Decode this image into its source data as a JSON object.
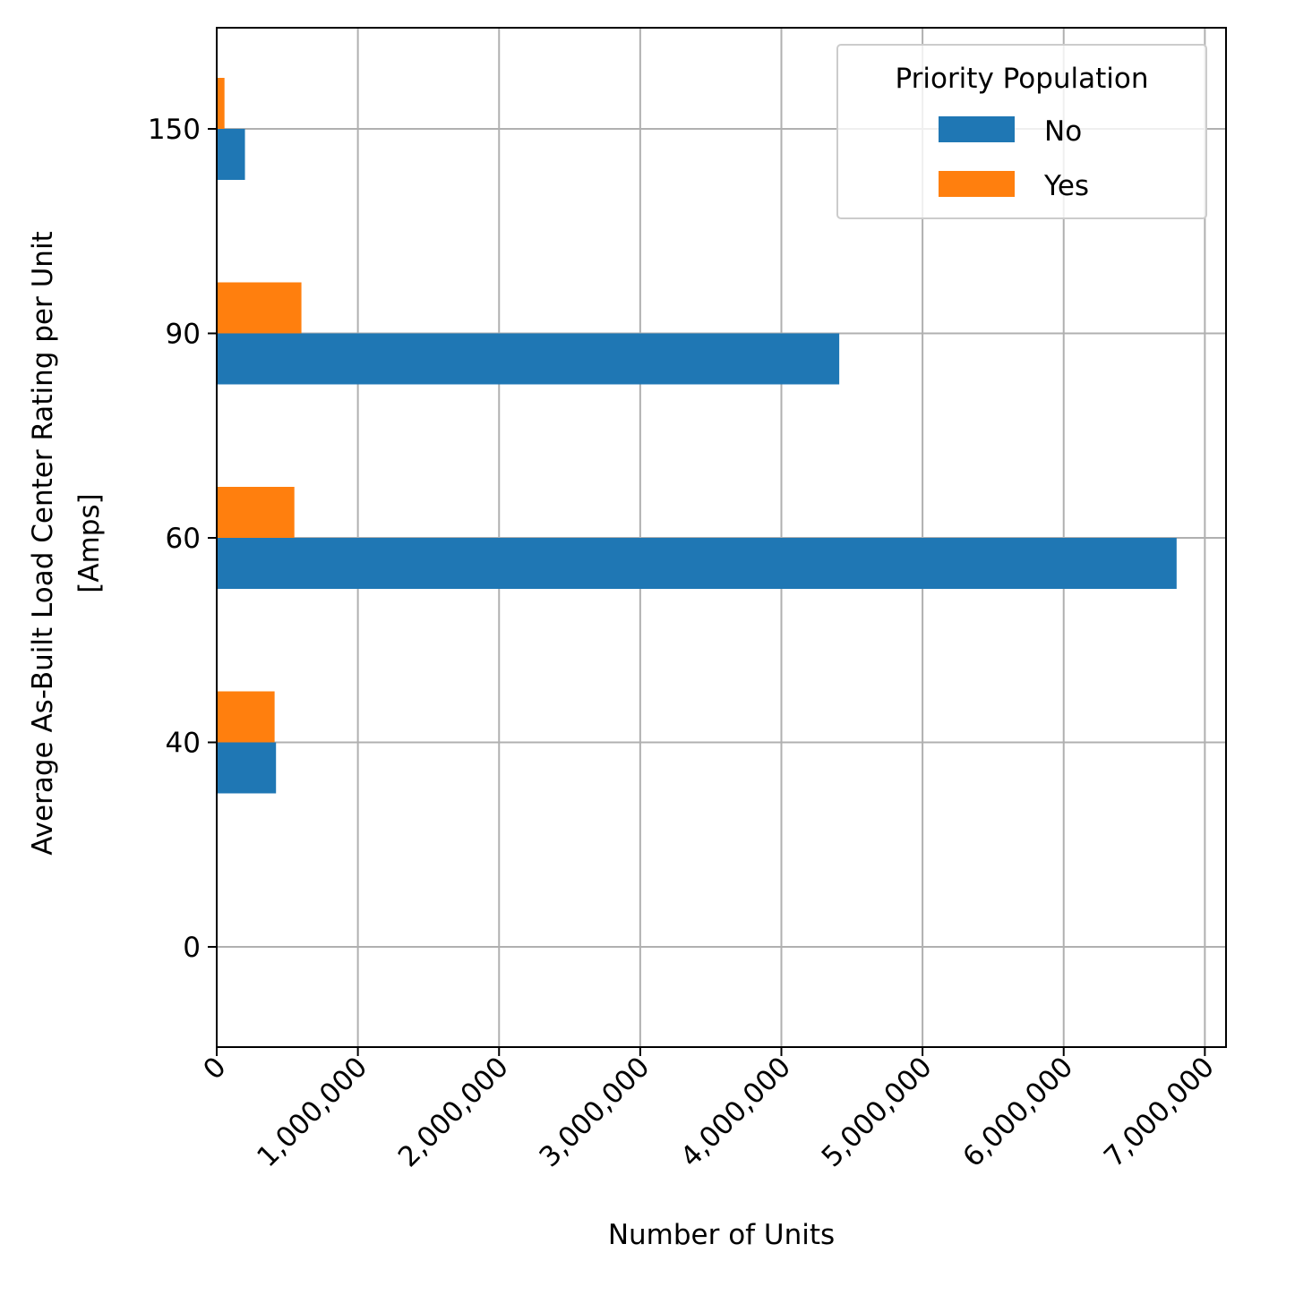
{
  "chart_data": {
    "type": "bar",
    "orientation": "horizontal",
    "xlabel": "Number of Units",
    "ylabel_lines": [
      "Average As-Built Load Center Rating per Unit",
      "[Amps]"
    ],
    "categories": [
      "0",
      "40",
      "60",
      "90",
      "150"
    ],
    "series": [
      {
        "name": "No",
        "color": "#1f77b4",
        "values": [
          0,
          420000,
          6800000,
          4410000,
          200000
        ]
      },
      {
        "name": "Yes",
        "color": "#ff7f0e",
        "values": [
          0,
          410000,
          550000,
          600000,
          55000
        ]
      }
    ],
    "xlim": [
      0,
      7150000
    ],
    "xticks": [
      0,
      1000000,
      2000000,
      3000000,
      4000000,
      5000000,
      6000000,
      7000000
    ],
    "xtick_labels": [
      "0",
      "1,000,000",
      "2,000,000",
      "3,000,000",
      "4,000,000",
      "5,000,000",
      "6,000,000",
      "7,000,000"
    ],
    "grid": true,
    "legend": {
      "title": "Priority Population",
      "placement": "top-right",
      "entries": [
        "No",
        "Yes"
      ]
    }
  }
}
